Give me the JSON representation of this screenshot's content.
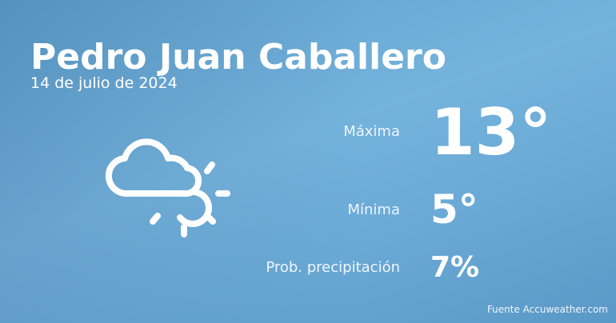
{
  "header": {
    "city": "Pedro Juan Caballero",
    "date": "14 de julio de 2024"
  },
  "weather": {
    "icon": "cloud-sun-icon",
    "max_label": "Máxima",
    "max_value": "13°",
    "min_label": "Mínima",
    "min_value": "5°",
    "precip_label": "Prob. precipitación",
    "precip_value": "7%"
  },
  "footer": {
    "source": "Fuente Accuweather.com"
  }
}
